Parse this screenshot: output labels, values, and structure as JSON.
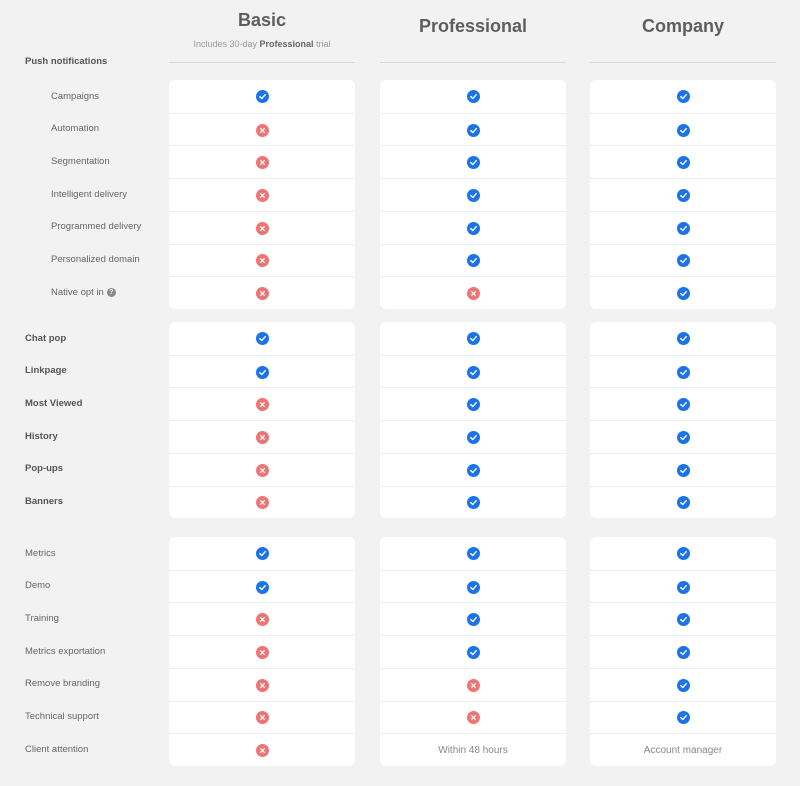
{
  "plans": [
    {
      "name": "Basic",
      "subtitle_pre": "Includes 30-day ",
      "subtitle_bold": "Professional",
      "subtitle_post": " trial"
    },
    {
      "name": "Professional"
    },
    {
      "name": "Company"
    }
  ],
  "section_title": "Push notifications",
  "groups": [
    {
      "rows": [
        {
          "label": "Campaigns",
          "indent": true,
          "bold": false,
          "values": [
            "yes",
            "yes",
            "yes"
          ]
        },
        {
          "label": "Automation",
          "indent": true,
          "bold": false,
          "values": [
            "no",
            "yes",
            "yes"
          ]
        },
        {
          "label": "Segmentation",
          "indent": true,
          "bold": false,
          "values": [
            "no",
            "yes",
            "yes"
          ]
        },
        {
          "label": "Intelligent delivery",
          "indent": true,
          "bold": false,
          "values": [
            "no",
            "yes",
            "yes"
          ]
        },
        {
          "label": "Programmed delivery",
          "indent": true,
          "bold": false,
          "values": [
            "no",
            "yes",
            "yes"
          ]
        },
        {
          "label": "Personalized domain",
          "indent": true,
          "bold": false,
          "values": [
            "no",
            "yes",
            "yes"
          ]
        },
        {
          "label": "Native opt in",
          "indent": true,
          "bold": false,
          "help": "?",
          "values": [
            "no",
            "no",
            "yes"
          ]
        }
      ]
    },
    {
      "rows": [
        {
          "label": "Chat pop",
          "indent": false,
          "bold": true,
          "values": [
            "yes",
            "yes",
            "yes"
          ]
        },
        {
          "label": "Linkpage",
          "indent": false,
          "bold": true,
          "values": [
            "yes",
            "yes",
            "yes"
          ]
        },
        {
          "label": "Most Viewed",
          "indent": false,
          "bold": true,
          "values": [
            "no",
            "yes",
            "yes"
          ]
        },
        {
          "label": "History",
          "indent": false,
          "bold": true,
          "values": [
            "no",
            "yes",
            "yes"
          ]
        },
        {
          "label": "Pop-ups",
          "indent": false,
          "bold": true,
          "values": [
            "no",
            "yes",
            "yes"
          ]
        },
        {
          "label": "Banners",
          "indent": false,
          "bold": true,
          "values": [
            "no",
            "yes",
            "yes"
          ]
        }
      ]
    },
    {
      "rows": [
        {
          "label": "Metrics",
          "indent": false,
          "bold": false,
          "values": [
            "yes",
            "yes",
            "yes"
          ]
        },
        {
          "label": "Demo",
          "indent": false,
          "bold": false,
          "values": [
            "yes",
            "yes",
            "yes"
          ]
        },
        {
          "label": "Training",
          "indent": false,
          "bold": false,
          "values": [
            "no",
            "yes",
            "yes"
          ]
        },
        {
          "label": "Metrics exportation",
          "indent": false,
          "bold": false,
          "values": [
            "no",
            "yes",
            "yes"
          ]
        },
        {
          "label": "Remove branding",
          "indent": false,
          "bold": false,
          "values": [
            "no",
            "no",
            "yes"
          ]
        },
        {
          "label": "Technical support",
          "indent": false,
          "bold": false,
          "values": [
            "no",
            "no",
            "yes"
          ]
        },
        {
          "label": "Client attention",
          "indent": false,
          "bold": false,
          "values": [
            "no",
            "Within 48 hours",
            "Account manager"
          ]
        }
      ]
    }
  ],
  "colors": {
    "check": "#1a73e8",
    "cross": "#ee7575"
  },
  "icons": {
    "yes": "check-circle-icon",
    "no": "cross-circle-icon",
    "help": "question-icon"
  }
}
